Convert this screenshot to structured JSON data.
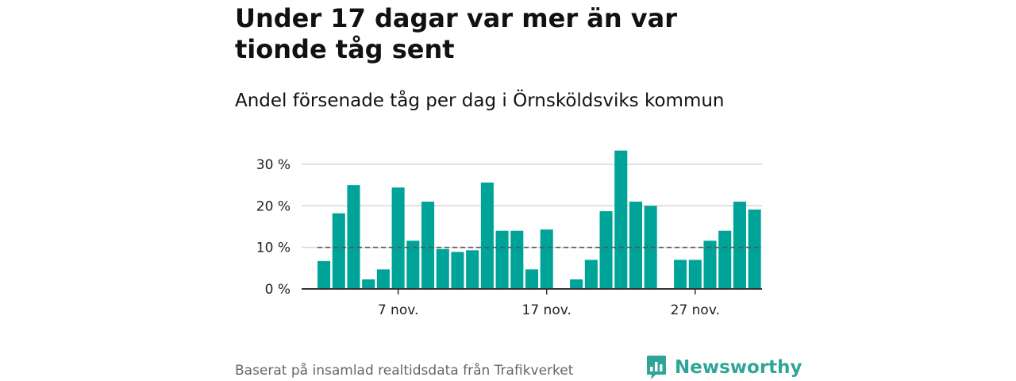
{
  "title": "Under 17 dagar var mer än var tionde tåg sent",
  "subtitle": "Andel försenade tåg per dag i Örnsköldsviks kommun",
  "footer": "Baserat på insamlad realtidsdata från Trafikverket",
  "brand": {
    "name": "Newsworthy",
    "color": "#2fa598"
  },
  "chart_data": {
    "type": "bar",
    "x_ticks": [
      {
        "day": 7,
        "label": "7 nov."
      },
      {
        "day": 17,
        "label": "17 nov."
      },
      {
        "day": 27,
        "label": "27 nov."
      }
    ],
    "y_ticks": [
      {
        "value": 0,
        "label": "0 %"
      },
      {
        "value": 10,
        "label": "10 %"
      },
      {
        "value": 20,
        "label": "20 %"
      },
      {
        "value": 30,
        "label": "30 %"
      }
    ],
    "ylim": [
      0,
      34
    ],
    "xlim": [
      0.5,
      31.5
    ],
    "reference_line": 10,
    "bar_color": "#00a398",
    "grid": true,
    "x": [
      2,
      3,
      4,
      5,
      6,
      7,
      8,
      9,
      10,
      11,
      12,
      13,
      14,
      15,
      16,
      17,
      18,
      19,
      20,
      21,
      22,
      23,
      24,
      25,
      26,
      27,
      28,
      29,
      30,
      31
    ],
    "values": [
      6.7,
      18.2,
      25,
      2.3,
      4.7,
      24.4,
      11.6,
      21,
      9.6,
      8.9,
      9.3,
      25.6,
      14,
      14,
      4.7,
      14.3,
      0,
      2.3,
      7,
      18.7,
      33.3,
      21,
      20,
      0,
      7,
      7,
      11.6,
      14,
      21,
      19.1
    ]
  }
}
